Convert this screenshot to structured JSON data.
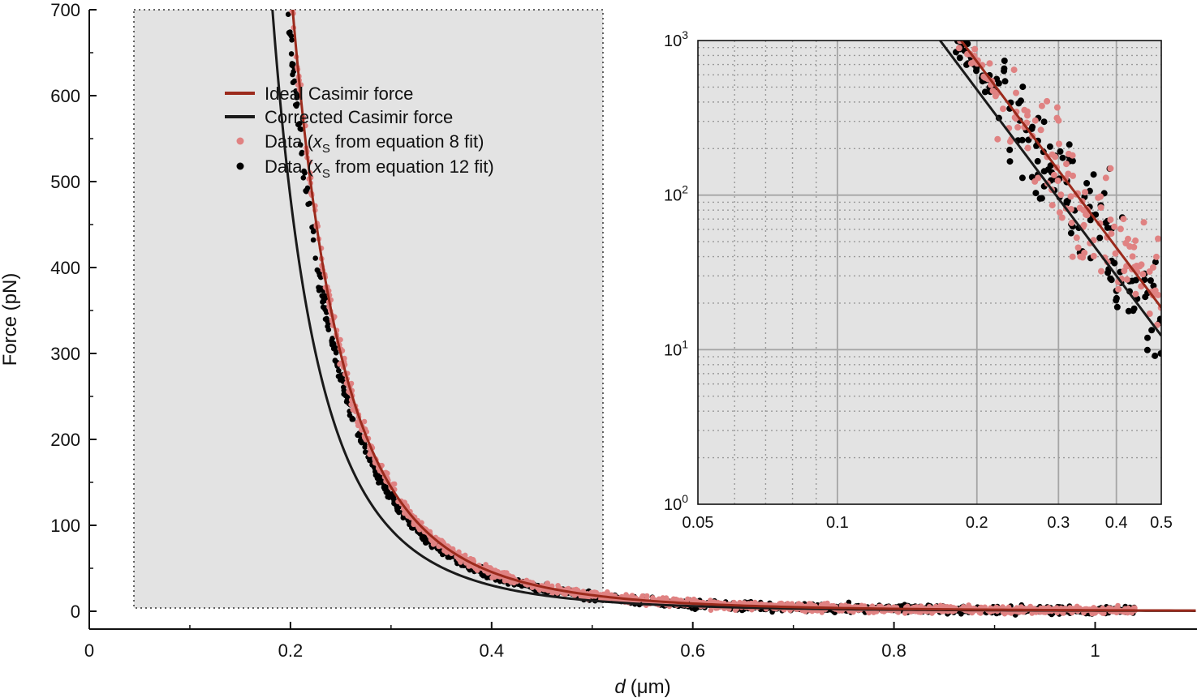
{
  "chart_data": [
    {
      "type": "scatter",
      "panel": "main",
      "xlabel": "d (μm)",
      "xlabel_var": "d",
      "xlabel_unit": "(μm)",
      "ylabel": "Force (pN)",
      "xlim": [
        0,
        1.1
      ],
      "ylim": [
        -20,
        700
      ],
      "x_ticks": [
        0,
        0.2,
        0.4,
        0.6,
        0.8,
        1
      ],
      "x_tick_labels": [
        "0",
        "0.2",
        "0.4",
        "0.6",
        "0.8",
        "1"
      ],
      "y_ticks": [
        0,
        100,
        200,
        300,
        400,
        500,
        600,
        700
      ],
      "y_tick_labels": [
        "0",
        "100",
        "200",
        "300",
        "400",
        "500",
        "600",
        "700"
      ],
      "highlight_region": {
        "x": [
          0.044,
          0.51
        ],
        "y": [
          2,
          700
        ]
      },
      "legend": {
        "placement": "upper-left inside",
        "entries": [
          {
            "label": "Ideal Casimir force",
            "kind": "line",
            "color": "#9b2a1c"
          },
          {
            "label": "Corrected Casimir force",
            "kind": "line",
            "color": "#1a1a1a"
          },
          {
            "label": "Data (",
            "var": "x",
            "sub": "S",
            "label_suffix": " from equation 8 fit)",
            "kind": "marker",
            "color": "#e08282"
          },
          {
            "label": "Data (",
            "var": "x",
            "sub": "S",
            "label_suffix": " from equation 12 fit)",
            "kind": "marker",
            "color": "#000000"
          }
        ]
      },
      "series": [
        {
          "name": "Ideal Casimir force",
          "kind": "line",
          "color": "#9b2a1c",
          "model": "F = 1.17 / d^4",
          "x_range": [
            0.05,
            1.1
          ]
        },
        {
          "name": "Corrected Casimir force",
          "kind": "line",
          "color": "#1a1a1a",
          "model": "F = 0.77 / d^4 (d ≥ 0.07), steeper below",
          "x_range": [
            0.06,
            1.1
          ]
        },
        {
          "name": "Data (xS from equation 8 fit)",
          "kind": "scatter",
          "color": "#e08282",
          "x_range": [
            0.06,
            1.04
          ],
          "trend": "follows ideal curve, scatter ±10 pN"
        },
        {
          "name": "Data (xS from equation 12 fit)",
          "kind": "scatter",
          "color": "#000000",
          "x_range": [
            0.06,
            1.04
          ],
          "trend": "slightly below ideal curve, scatter ±10 pN"
        }
      ]
    },
    {
      "type": "scatter",
      "panel": "inset",
      "xscale": "log",
      "yscale": "log",
      "xlim": [
        0.05,
        0.5
      ],
      "ylim": [
        1,
        1000
      ],
      "x_ticks": [
        0.05,
        0.1,
        0.2,
        0.3,
        0.4,
        0.5
      ],
      "x_tick_labels": [
        "0.05",
        "0.1",
        "0.2",
        "0.3",
        "0.4",
        "0.5"
      ],
      "y_ticks": [
        1,
        10,
        100,
        1000
      ],
      "y_tick_labels": [
        {
          "base": "10",
          "exp": "0"
        },
        {
          "base": "10",
          "exp": "1"
        },
        {
          "base": "10",
          "exp": "2"
        },
        {
          "base": "10",
          "exp": "3"
        }
      ],
      "grid": true,
      "series": [
        {
          "name": "Ideal Casimir force",
          "kind": "line",
          "color": "#9b2a1c"
        },
        {
          "name": "Corrected Casimir force",
          "kind": "line",
          "color": "#1a1a1a"
        },
        {
          "name": "Data (xS from equation 8 fit)",
          "kind": "scatter",
          "color": "#e08282",
          "x_range": [
            0.065,
            0.5
          ]
        },
        {
          "name": "Data (xS from equation 12 fit)",
          "kind": "scatter",
          "color": "#000000",
          "x_range": [
            0.065,
            0.5
          ]
        }
      ]
    }
  ]
}
